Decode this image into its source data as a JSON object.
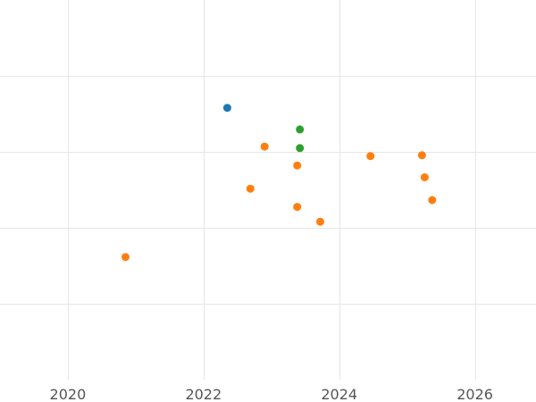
{
  "chart_data": {
    "type": "scatter",
    "title": "",
    "xlabel": "",
    "ylabel": "",
    "xlim": [
      2019.0,
      2026.9
    ],
    "ylim": [
      0,
      100
    ],
    "x_ticks": [
      2020,
      2022,
      2024,
      2026
    ],
    "x_tick_labels": [
      "2020",
      "2022",
      "2024",
      "2026"
    ],
    "y_gridlines": [
      20,
      40,
      60,
      80
    ],
    "grid": true,
    "legend": "none",
    "series": [
      {
        "color": "#1f77b4",
        "points": [
          {
            "x": 2022.35,
            "y": 71.6
          }
        ]
      },
      {
        "color": "#2ca02c",
        "points": [
          {
            "x": 2023.42,
            "y": 65.9
          },
          {
            "x": 2023.42,
            "y": 61.0
          }
        ]
      },
      {
        "color": "#ff7f0e",
        "points": [
          {
            "x": 2022.9,
            "y": 61.4
          },
          {
            "x": 2023.38,
            "y": 56.4
          },
          {
            "x": 2022.69,
            "y": 50.3
          },
          {
            "x": 2023.38,
            "y": 45.5
          },
          {
            "x": 2023.72,
            "y": 41.6
          },
          {
            "x": 2020.85,
            "y": 32.3
          },
          {
            "x": 2024.46,
            "y": 58.9
          },
          {
            "x": 2025.22,
            "y": 59.1
          },
          {
            "x": 2025.26,
            "y": 53.3
          },
          {
            "x": 2025.37,
            "y": 47.3
          }
        ]
      }
    ]
  }
}
